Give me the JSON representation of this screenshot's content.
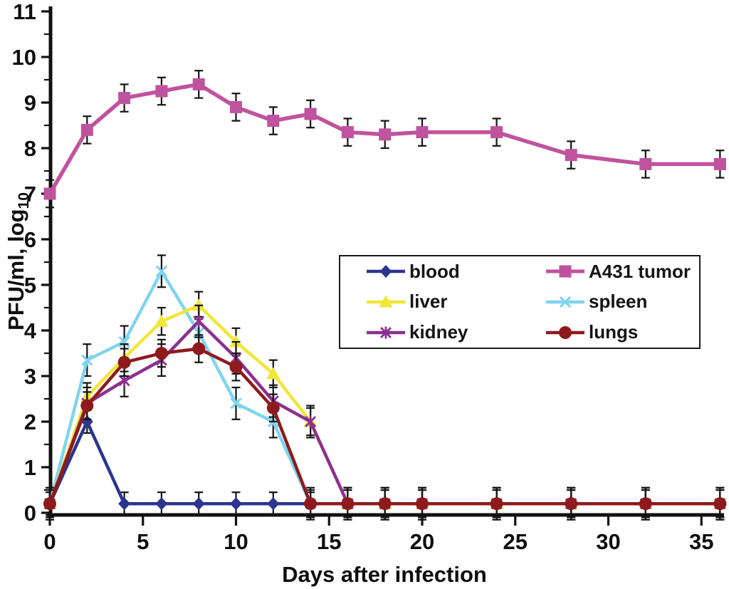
{
  "chart_data": {
    "type": "line",
    "title": "",
    "xlabel": "Days after infection",
    "ylabel_main": "PFU/ml, log",
    "ylabel_sub": "10",
    "xlim": [
      0,
      36.5
    ],
    "ylim": [
      0,
      11
    ],
    "x_major_ticks": [
      0,
      5,
      10,
      15,
      20,
      25,
      30,
      35
    ],
    "y_major_ticks": [
      0,
      1,
      2,
      3,
      4,
      5,
      6,
      7,
      8,
      9,
      10,
      11
    ],
    "y_minor_step": 0.5,
    "grid": false,
    "legend_position": "center-right",
    "legend_border": true,
    "axis_color": "#111111",
    "error_bar_color": "#141414",
    "background_color": "#ffffff",
    "draw_order": [
      "blood",
      "spleen",
      "liver",
      "kidney",
      "lungs",
      "A431 tumor"
    ],
    "series": [
      {
        "name": "blood",
        "color": "#2B3590",
        "marker": "diamond",
        "err": 0.25,
        "x": [
          0,
          2,
          4,
          6,
          8,
          10,
          12,
          14
        ],
        "y": [
          0.2,
          2.0,
          0.2,
          0.2,
          0.2,
          0.2,
          0.2,
          0.2
        ]
      },
      {
        "name": "A431 tumor",
        "color": "#C0539E",
        "marker": "square",
        "err": 0.3,
        "x": [
          0,
          2,
          4,
          6,
          8,
          10,
          12,
          14,
          16,
          18,
          20,
          24,
          28,
          32,
          36
        ],
        "y": [
          7.0,
          8.4,
          9.1,
          9.25,
          9.4,
          8.9,
          8.6,
          8.75,
          8.35,
          8.3,
          8.35,
          8.35,
          7.85,
          7.65,
          7.65
        ]
      },
      {
        "name": "liver",
        "color": "#F2E636",
        "marker": "triangle",
        "err": 0.3,
        "x": [
          0,
          2,
          4,
          6,
          8,
          10,
          12,
          14,
          16,
          18,
          20,
          24,
          28,
          32,
          36
        ],
        "y": [
          0.2,
          2.55,
          3.4,
          4.2,
          4.55,
          3.75,
          3.05,
          2.0,
          0.2,
          0.2,
          0.2,
          0.2,
          0.2,
          0.2,
          0.2
        ]
      },
      {
        "name": "spleen",
        "color": "#7FD5EF",
        "marker": "x",
        "err": 0.35,
        "x": [
          0,
          2,
          4,
          6,
          8,
          10,
          12,
          14,
          16,
          18,
          20,
          24,
          28,
          32,
          36
        ],
        "y": [
          0.2,
          3.35,
          3.75,
          5.3,
          3.95,
          2.4,
          2.0,
          0.2,
          0.2,
          0.2,
          0.2,
          0.2,
          0.2,
          0.2,
          0.2
        ]
      },
      {
        "name": "kidney",
        "color": "#8C3090",
        "marker": "star",
        "err": 0.35,
        "x": [
          0,
          2,
          4,
          6,
          8,
          10,
          12,
          14,
          16,
          18,
          20,
          24,
          28,
          32,
          36
        ],
        "y": [
          0.2,
          2.4,
          2.9,
          3.35,
          4.2,
          3.4,
          2.45,
          2.0,
          0.2,
          0.2,
          0.2,
          0.2,
          0.2,
          0.2,
          0.2
        ]
      },
      {
        "name": "lungs",
        "color": "#8E1A1D",
        "marker": "circle",
        "err": 0.3,
        "x": [
          0,
          2,
          4,
          6,
          8,
          10,
          12,
          14,
          16,
          18,
          20,
          24,
          28,
          32,
          36
        ],
        "y": [
          0.2,
          2.35,
          3.3,
          3.5,
          3.6,
          3.2,
          2.3,
          0.2,
          0.2,
          0.2,
          0.2,
          0.2,
          0.2,
          0.2,
          0.2
        ]
      }
    ]
  }
}
